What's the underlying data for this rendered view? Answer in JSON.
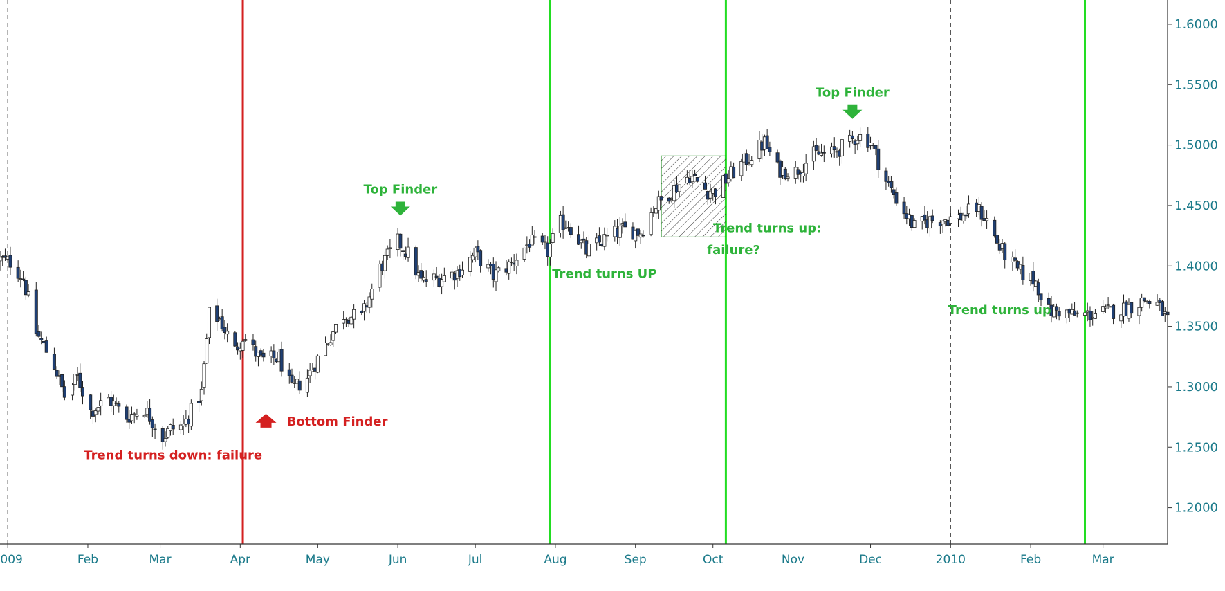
{
  "chart_data": {
    "type": "candlestick",
    "title": "",
    "xlabel": "",
    "ylabel": "",
    "x_range": [
      "2008-12-29",
      "2010-03-26"
    ],
    "ylim": [
      1.17,
      1.62
    ],
    "grid": false,
    "y_axis_position": "right",
    "x_ticks": [
      {
        "label": "2009",
        "date": "2009-01-01"
      },
      {
        "label": "Feb",
        "date": "2009-02-01"
      },
      {
        "label": "Mar",
        "date": "2009-03-01"
      },
      {
        "label": "Apr",
        "date": "2009-04-01"
      },
      {
        "label": "May",
        "date": "2009-05-01"
      },
      {
        "label": "Jun",
        "date": "2009-06-01"
      },
      {
        "label": "Jul",
        "date": "2009-07-01"
      },
      {
        "label": "Aug",
        "date": "2009-08-01"
      },
      {
        "label": "Sep",
        "date": "2009-09-01"
      },
      {
        "label": "Oct",
        "date": "2009-10-01"
      },
      {
        "label": "Nov",
        "date": "2009-11-01"
      },
      {
        "label": "Dec",
        "date": "2009-12-01"
      },
      {
        "label": "2010",
        "date": "2010-01-01"
      },
      {
        "label": "Feb",
        "date": "2010-02-01"
      },
      {
        "label": "Mar",
        "date": "2010-03-01"
      }
    ],
    "y_ticks": [
      {
        "label": "1.2000",
        "value": 1.2
      },
      {
        "label": "1.2500",
        "value": 1.25
      },
      {
        "label": "1.3000",
        "value": 1.3
      },
      {
        "label": "1.3500",
        "value": 1.35
      },
      {
        "label": "1.4000",
        "value": 1.4
      },
      {
        "label": "1.4500",
        "value": 1.45
      },
      {
        "label": "1.5000",
        "value": 1.5
      },
      {
        "label": "1.5500",
        "value": 1.55
      },
      {
        "label": "1.6000",
        "value": 1.6
      }
    ],
    "close_path": [
      [
        "2008-12-29",
        1.405
      ],
      [
        "2009-01-02",
        1.403
      ],
      [
        "2009-01-07",
        1.39
      ],
      [
        "2009-01-12",
        1.345
      ],
      [
        "2009-01-19",
        1.318
      ],
      [
        "2009-01-23",
        1.292
      ],
      [
        "2009-01-28",
        1.308
      ],
      [
        "2009-02-02",
        1.28
      ],
      [
        "2009-02-09",
        1.29
      ],
      [
        "2009-02-16",
        1.275
      ],
      [
        "2009-02-23",
        1.282
      ],
      [
        "2009-03-02",
        1.258
      ],
      [
        "2009-03-05",
        1.265
      ],
      [
        "2009-03-10",
        1.268
      ],
      [
        "2009-03-17",
        1.295
      ],
      [
        "2009-03-20",
        1.36
      ],
      [
        "2009-03-24",
        1.356
      ],
      [
        "2009-03-30",
        1.33
      ],
      [
        "2009-04-02",
        1.342
      ],
      [
        "2009-04-09",
        1.322
      ],
      [
        "2009-04-16",
        1.324
      ],
      [
        "2009-04-21",
        1.297
      ],
      [
        "2009-04-27",
        1.308
      ],
      [
        "2009-05-04",
        1.335
      ],
      [
        "2009-05-11",
        1.36
      ],
      [
        "2009-05-18",
        1.357
      ],
      [
        "2009-05-25",
        1.398
      ],
      [
        "2009-06-01",
        1.42
      ],
      [
        "2009-06-05",
        1.41
      ],
      [
        "2009-06-10",
        1.387
      ],
      [
        "2009-06-17",
        1.39
      ],
      [
        "2009-06-24",
        1.395
      ],
      [
        "2009-07-01",
        1.41
      ],
      [
        "2009-07-08",
        1.392
      ],
      [
        "2009-07-15",
        1.402
      ],
      [
        "2009-07-22",
        1.42
      ],
      [
        "2009-07-29",
        1.412
      ],
      [
        "2009-08-03",
        1.435
      ],
      [
        "2009-08-06",
        1.435
      ],
      [
        "2009-08-13",
        1.412
      ],
      [
        "2009-08-20",
        1.422
      ],
      [
        "2009-08-27",
        1.43
      ],
      [
        "2009-09-03",
        1.428
      ],
      [
        "2009-09-08",
        1.448
      ],
      [
        "2009-09-15",
        1.462
      ],
      [
        "2009-09-22",
        1.475
      ],
      [
        "2009-09-29",
        1.462
      ],
      [
        "2009-10-02",
        1.462
      ],
      [
        "2009-10-09",
        1.478
      ],
      [
        "2009-10-16",
        1.492
      ],
      [
        "2009-10-21",
        1.502
      ],
      [
        "2009-10-26",
        1.48
      ],
      [
        "2009-11-02",
        1.478
      ],
      [
        "2009-11-09",
        1.492
      ],
      [
        "2009-11-16",
        1.493
      ],
      [
        "2009-11-23",
        1.502
      ],
      [
        "2009-11-26",
        1.508
      ],
      [
        "2009-12-01",
        1.503
      ],
      [
        "2009-12-07",
        1.47
      ],
      [
        "2009-12-14",
        1.445
      ],
      [
        "2009-12-18",
        1.432
      ],
      [
        "2009-12-24",
        1.438
      ],
      [
        "2010-01-04",
        1.44
      ],
      [
        "2010-01-11",
        1.448
      ],
      [
        "2010-01-15",
        1.438
      ],
      [
        "2010-01-20",
        1.415
      ],
      [
        "2010-01-27",
        1.396
      ],
      [
        "2010-02-03",
        1.387
      ],
      [
        "2010-02-08",
        1.362
      ],
      [
        "2010-02-12",
        1.363
      ],
      [
        "2010-02-18",
        1.359
      ],
      [
        "2010-02-24",
        1.36
      ],
      [
        "2010-03-03",
        1.362
      ],
      [
        "2010-03-10",
        1.365
      ],
      [
        "2010-03-17",
        1.372
      ],
      [
        "2010-03-22",
        1.368
      ],
      [
        "2010-03-26",
        1.355
      ]
    ],
    "marker_lines": [
      {
        "date": "2009-04-02",
        "color": "#d42020",
        "style": "solid"
      },
      {
        "date": "2009-07-30",
        "color": "#22dd22",
        "style": "solid"
      },
      {
        "date": "2009-10-06",
        "color": "#22dd22",
        "style": "solid"
      },
      {
        "date": "2010-02-22",
        "color": "#22dd22",
        "style": "solid"
      },
      {
        "date": "2009-01-01",
        "color": "#444444",
        "style": "dashed"
      },
      {
        "date": "2010-01-01",
        "color": "#444444",
        "style": "dashed"
      }
    ],
    "shaded_region": {
      "x": [
        "2009-09-11",
        "2009-10-06"
      ],
      "y": [
        1.424,
        1.491
      ],
      "pattern": "diagonal-hatch"
    },
    "annotations": [
      {
        "text": "Top Finder",
        "date": "2009-06-02",
        "value": 1.46,
        "marker": "down-arrow",
        "color": "#2eb33a"
      },
      {
        "text": "Bottom Finder",
        "date": "2009-04-19",
        "value": 1.268,
        "marker": "up-arrow",
        "color": "#d42020"
      },
      {
        "text": "Trend turns down: failure",
        "date": "2009-03-06",
        "value": 1.24,
        "color": "#d42020"
      },
      {
        "text": "Trend turns UP",
        "date": "2009-08-20",
        "value": 1.39,
        "color": "#2eb33a"
      },
      {
        "text": "Trend turns up:",
        "date": "2009-10-22",
        "value": 1.428,
        "color": "#2eb33a"
      },
      {
        "text": "failure?",
        "date": "2009-10-09",
        "value": 1.41,
        "color": "#2eb33a"
      },
      {
        "text": "Top Finder",
        "date": "2009-11-24",
        "value": 1.54,
        "marker": "down-arrow",
        "color": "#2eb33a"
      },
      {
        "text": "Trend turns up",
        "date": "2010-01-20",
        "value": 1.36,
        "color": "#2eb33a"
      }
    ]
  },
  "colors": {
    "axis_text": "#1b7a8a",
    "bull_candle": "#ffffff",
    "bear_candle": "#1f3f73",
    "red_line": "#d42020",
    "green_line": "#22dd22",
    "annotation_green": "#2eb33a",
    "annotation_red": "#d42020"
  }
}
